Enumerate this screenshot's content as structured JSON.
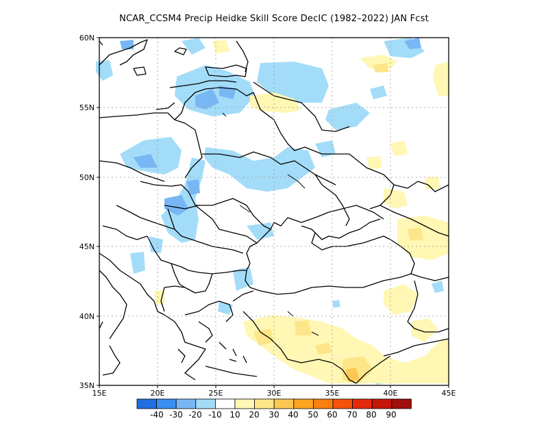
{
  "title": "NCAR_CCSM4 Precip Heidke Skill Score DecIC (1982–2022) JAN Fcst",
  "lat_labels": [
    "60N",
    "55N",
    "50N",
    "45N",
    "40N",
    "35N"
  ],
  "lon_labels": [
    "15E",
    "20E",
    "25E",
    "30E",
    "35E",
    "40E",
    "45E"
  ],
  "colorbar": {
    "colors": [
      "#1f6fe0",
      "#3b8ff0",
      "#78b7f4",
      "#a3dcf8",
      "#ffffff",
      "#fff7b3",
      "#fde68a",
      "#fcc854",
      "#fba421",
      "#f97f0f",
      "#f5520c",
      "#e42a0a",
      "#c5160a",
      "#a00e0b"
    ],
    "labels": [
      "-40",
      "-30",
      "-20",
      "-10",
      "10",
      "20",
      "30",
      "40",
      "50",
      "60",
      "70",
      "80",
      "90"
    ]
  }
}
